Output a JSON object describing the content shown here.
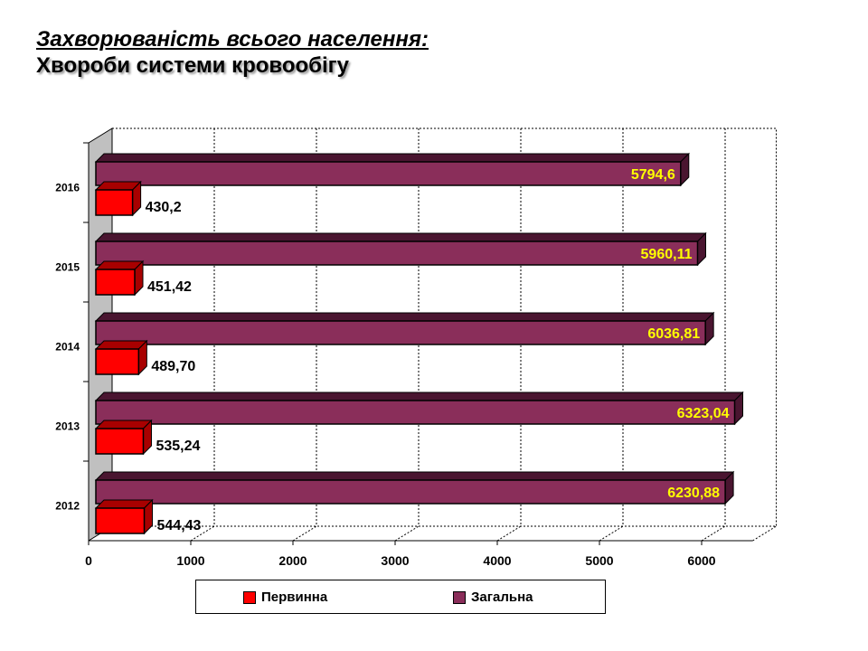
{
  "title": {
    "line1": "Захворюваність всього населення:",
    "line2": "Хвороби системи кровообігу"
  },
  "colors": {
    "primary_front": "#ff0000",
    "primary_side": "#a80000",
    "total_front": "#8a2e5a",
    "total_side": "#4a1530",
    "total_label": "#ffff00",
    "primary_label": "#000000"
  },
  "chart_data": {
    "type": "bar",
    "orientation": "horizontal",
    "categories": [
      "2012",
      "2013",
      "2014",
      "2015",
      "2016"
    ],
    "series": [
      {
        "name": "Первинна",
        "values": [
          544.43,
          535.24,
          489.7,
          451.42,
          430.2
        ],
        "labels": [
          "544,43",
          "535,24",
          "489,70",
          "451,42",
          "430,2"
        ]
      },
      {
        "name": "Загальна",
        "values": [
          6230.88,
          6323.04,
          6036.81,
          5960.11,
          5794.6
        ],
        "labels": [
          "6230,88",
          "6323,04",
          "6036,81",
          "5960,11",
          "5794,6"
        ]
      }
    ],
    "x_ticks": [
      "0",
      "1000",
      "2000",
      "3000",
      "4000",
      "5000",
      "6000"
    ],
    "xlim": [
      0,
      6500
    ],
    "grid": true,
    "legend_position": "bottom",
    "three_d": true
  }
}
